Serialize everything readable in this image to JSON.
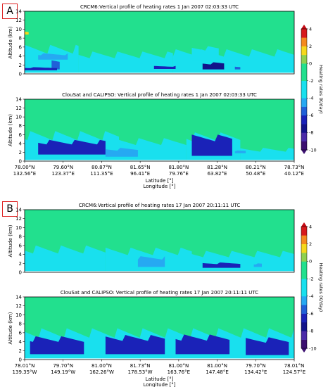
{
  "panel_labels": [
    "A",
    "B"
  ],
  "chart_data": [
    {
      "type": "heatmap",
      "title": "CRCM6:Vertical profile of heating rates  1 Jan 2007 02:03:33 UTC",
      "ylabel": "Altitude (km)",
      "ylim": [
        0,
        14
      ],
      "yticks": [
        0,
        2,
        4,
        6,
        8,
        10,
        12,
        14
      ],
      "xlabel": "",
      "xticks": [],
      "colorbar_label": "Heating rates (K/day)",
      "colorbar_ticks": [
        -10,
        -8,
        -6,
        -4,
        -2,
        0,
        2,
        4
      ],
      "background_value": -1,
      "features": [
        {
          "x": [
            0.0,
            0.2
          ],
          "alt": [
            0.2,
            6.5
          ],
          "value": -3
        },
        {
          "x": [
            0.2,
            0.55
          ],
          "alt": [
            0.2,
            5.0
          ],
          "value": -3
        },
        {
          "x": [
            0.55,
            1.0
          ],
          "alt": [
            0.2,
            5.5
          ],
          "value": -3
        },
        {
          "x": [
            0.62,
            0.72
          ],
          "alt": [
            3.0,
            6.2
          ],
          "value": -3
        },
        {
          "x": [
            0.05,
            0.16
          ],
          "alt": [
            3.2,
            4.6
          ],
          "value": -5
        },
        {
          "x": [
            0.1,
            0.13
          ],
          "alt": [
            1.0,
            3.2
          ],
          "value": -6
        },
        {
          "x": [
            0.0,
            0.12
          ],
          "alt": [
            0.8,
            1.5
          ],
          "value": -7
        },
        {
          "x": [
            0.48,
            0.56
          ],
          "alt": [
            1.1,
            1.8
          ],
          "value": -7
        },
        {
          "x": [
            0.66,
            0.74
          ],
          "alt": [
            1.0,
            2.6
          ],
          "value": -8
        },
        {
          "x": [
            0.78,
            0.8
          ],
          "alt": [
            1.0,
            1.6
          ],
          "value": -6
        },
        {
          "x": [
            0.0,
            0.015
          ],
          "alt": [
            8.8,
            9.6
          ],
          "value": 1
        }
      ]
    },
    {
      "type": "heatmap",
      "title": "ClouSat and CALIPSO: Vertical profile of heating rates  1 Jan 2007 02:03:33 UTC",
      "ylabel": "Altitude (km)",
      "ylim": [
        0,
        14
      ],
      "yticks": [
        0,
        2,
        4,
        6,
        8,
        10,
        12,
        14
      ],
      "xlabel": "Latitude [°]\nLongitude [°]",
      "xticks": [
        "78.00°N\n132.56°E",
        "79.60°N\n123.37°E",
        "80.87°N\n111.35°E",
        "81.65°N\n96.41°E",
        "81.80°N\n79.76°E",
        "81.28°N\n63.82°E",
        "80.21°N\n50.48°E",
        "78.73°N\n40.12°E"
      ],
      "colorbar_label": "Heating rates (K/day)",
      "colorbar_ticks": [
        -10,
        -8,
        -6,
        -4,
        -2,
        0,
        2,
        4
      ],
      "background_value": -1,
      "features": [
        {
          "x": [
            0.0,
            0.35
          ],
          "alt": [
            0.2,
            6.8
          ],
          "value": -3
        },
        {
          "x": [
            0.35,
            0.6
          ],
          "alt": [
            0.2,
            5.2
          ],
          "value": -3
        },
        {
          "x": [
            0.6,
            0.8
          ],
          "alt": [
            0.2,
            6.5
          ],
          "value": -3
        },
        {
          "x": [
            0.8,
            1.0
          ],
          "alt": [
            0.2,
            3.0
          ],
          "value": -3
        },
        {
          "x": [
            0.05,
            0.3
          ],
          "alt": [
            1.5,
            4.8
          ],
          "value": -7
        },
        {
          "x": [
            0.62,
            0.77
          ],
          "alt": [
            1.2,
            6.0
          ],
          "value": -7
        },
        {
          "x": [
            0.3,
            0.42
          ],
          "alt": [
            1.0,
            3.0
          ],
          "value": -5
        },
        {
          "x": [
            0.78,
            0.82
          ],
          "alt": [
            1.8,
            2.4
          ],
          "value": -5
        }
      ]
    },
    {
      "type": "heatmap",
      "title": "CRCM6:Vertical profile of heating rates 17 Jan 2007 20:11:11 UTC",
      "ylabel": "Altitude (km)",
      "ylim": [
        0,
        14
      ],
      "yticks": [
        0,
        2,
        4,
        6,
        8,
        10,
        12,
        14
      ],
      "xlabel": "",
      "xticks": [],
      "colorbar_label": "Heating rates (K/day)",
      "colorbar_ticks": [
        -10,
        -8,
        -6,
        -4,
        -2,
        0,
        2,
        4
      ],
      "background_value": -1,
      "features": [
        {
          "x": [
            0.0,
            0.3
          ],
          "alt": [
            0.2,
            6.0
          ],
          "value": -3
        },
        {
          "x": [
            0.3,
            0.62
          ],
          "alt": [
            0.2,
            5.5
          ],
          "value": -3
        },
        {
          "x": [
            0.62,
            1.0
          ],
          "alt": [
            0.2,
            4.8
          ],
          "value": -3
        },
        {
          "x": [
            0.42,
            0.52
          ],
          "alt": [
            1.2,
            3.6
          ],
          "value": -5
        },
        {
          "x": [
            0.66,
            0.8
          ],
          "alt": [
            1.0,
            2.2
          ],
          "value": -7
        },
        {
          "x": [
            0.85,
            0.88
          ],
          "alt": [
            1.2,
            2.0
          ],
          "value": -5
        }
      ]
    },
    {
      "type": "heatmap",
      "title": "ClouSat and CALIPSO: Vertical profile of heating rates 17 Jan 2007 20:11:11 UTC",
      "ylabel": "Altitude (km)",
      "ylim": [
        0,
        14
      ],
      "yticks": [
        0,
        2,
        4,
        6,
        8,
        10,
        12,
        14
      ],
      "xlabel": "Latitude [°]\nLongitude [°]",
      "xticks": [
        "78.01°N\n139.35°W",
        "79.70°N\n149.19°W",
        "81.00°N\n162.26°W",
        "81.73°N\n178.53°W",
        "81.00°N\n163.76°E",
        "81.00°N\n147.48°E",
        "79.70°N\n134.42°E",
        "78.01°N\n124.57°E"
      ],
      "colorbar_label": "Heating rates (K/day)",
      "colorbar_ticks": [
        -10,
        -8,
        -6,
        -4,
        -2,
        0,
        2,
        4
      ],
      "background_value": -1,
      "features": [
        {
          "x": [
            0.0,
            1.0
          ],
          "alt": [
            0.2,
            7.0
          ],
          "value": -3
        },
        {
          "x": [
            0.02,
            0.22
          ],
          "alt": [
            1.2,
            5.2
          ],
          "value": -7
        },
        {
          "x": [
            0.3,
            0.52
          ],
          "alt": [
            1.2,
            5.5
          ],
          "value": -7
        },
        {
          "x": [
            0.56,
            0.76
          ],
          "alt": [
            1.2,
            5.6
          ],
          "value": -7
        },
        {
          "x": [
            0.82,
            0.98
          ],
          "alt": [
            1.0,
            5.0
          ],
          "value": -7
        }
      ]
    }
  ]
}
